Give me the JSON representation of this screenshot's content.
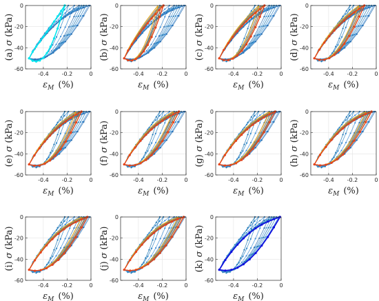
{
  "figure": {
    "xlabel": "εM (%)",
    "xlabel_symbol": "ε",
    "xlabel_sub": "M",
    "xlabel_unit": "(%)",
    "ylabel_symbol": "σ",
    "ylabel_unit": "(kPa)",
    "xticks": [
      "-0.4",
      "-0.2",
      "0"
    ],
    "yticks": [
      "0",
      "-20",
      "-40",
      "-60"
    ]
  },
  "chart_data": [
    {
      "type": "line",
      "panel": "(a)",
      "xlabel": "εM (%)",
      "ylabel": "σ (kPa)",
      "xlim": [
        -0.55,
        0
      ],
      "ylim": [
        -60,
        0
      ],
      "grid": true,
      "highlight_color": "#00e5ee",
      "highlight_loop": {
        "xmin": -0.52,
        "xmax": -0.22,
        "upper_mid": -28,
        "lower_mid": -46
      }
    },
    {
      "type": "line",
      "panel": "(b)",
      "xlabel": "εM (%)",
      "ylabel": "σ (kPa)",
      "xlim": [
        -0.55,
        0
      ],
      "ylim": [
        -60,
        0
      ],
      "grid": true,
      "highlight_color": "#e8441b",
      "highlight_loop": {
        "xmin": -0.52,
        "xmax": -0.19,
        "upper_mid": -24,
        "lower_mid": -43
      }
    },
    {
      "type": "line",
      "panel": "(c)",
      "xlabel": "εM (%)",
      "ylabel": "σ (kPa)",
      "xlim": [
        -0.55,
        0
      ],
      "ylim": [
        -60,
        0
      ],
      "grid": true,
      "highlight_color": "#e8441b",
      "highlight_loop": {
        "xmin": -0.52,
        "xmax": -0.14,
        "upper_mid": -22,
        "lower_mid": -42
      }
    },
    {
      "type": "line",
      "panel": "(d)",
      "xlabel": "εM (%)",
      "ylabel": "σ (kPa)",
      "xlim": [
        -0.55,
        0
      ],
      "ylim": [
        -60,
        0
      ],
      "grid": true,
      "highlight_color": "#e8441b",
      "highlight_loop": {
        "xmin": -0.52,
        "xmax": -0.1,
        "upper_mid": -21,
        "lower_mid": -41
      }
    },
    {
      "type": "line",
      "panel": "(e)",
      "xlabel": "εM (%)",
      "ylabel": "σ (kPa)",
      "xlim": [
        -0.55,
        0
      ],
      "ylim": [
        -60,
        0
      ],
      "grid": true,
      "highlight_color": "#e8441b",
      "highlight_loop": {
        "xmin": -0.52,
        "xmax": -0.08,
        "upper_mid": -20,
        "lower_mid": -40
      }
    },
    {
      "type": "line",
      "panel": "(f)",
      "xlabel": "εM (%)",
      "ylabel": "σ (kPa)",
      "xlim": [
        -0.55,
        0
      ],
      "ylim": [
        -60,
        0
      ],
      "grid": true,
      "highlight_color": "#e8441b",
      "highlight_loop": {
        "xmin": -0.52,
        "xmax": -0.06,
        "upper_mid": -19,
        "lower_mid": -39
      }
    },
    {
      "type": "line",
      "panel": "(g)",
      "xlabel": "εM (%)",
      "ylabel": "σ (kPa)",
      "xlim": [
        -0.55,
        0
      ],
      "ylim": [
        -60,
        0
      ],
      "grid": true,
      "highlight_color": "#e8441b",
      "highlight_loop": {
        "xmin": -0.52,
        "xmax": -0.05,
        "upper_mid": -19,
        "lower_mid": -39
      }
    },
    {
      "type": "line",
      "panel": "(h)",
      "xlabel": "εM (%)",
      "ylabel": "σ (kPa)",
      "xlim": [
        -0.55,
        0
      ],
      "ylim": [
        -60,
        0
      ],
      "grid": true,
      "highlight_color": "#e8441b",
      "highlight_loop": {
        "xmin": -0.52,
        "xmax": -0.04,
        "upper_mid": -18,
        "lower_mid": -38
      }
    },
    {
      "type": "line",
      "panel": "(i)",
      "xlabel": "εM (%)",
      "ylabel": "σ (kPa)",
      "xlim": [
        -0.55,
        0
      ],
      "ylim": [
        -60,
        0
      ],
      "grid": true,
      "highlight_color": "#e8441b",
      "highlight_loop": {
        "xmin": -0.52,
        "xmax": -0.03,
        "upper_mid": -18,
        "lower_mid": -38
      }
    },
    {
      "type": "line",
      "panel": "(j)",
      "xlabel": "εM (%)",
      "ylabel": "σ (kPa)",
      "xlim": [
        -0.55,
        0
      ],
      "ylim": [
        -60,
        0
      ],
      "grid": true,
      "highlight_color": "#e8441b",
      "highlight_loop": {
        "xmin": -0.52,
        "xmax": -0.02,
        "upper_mid": -17,
        "lower_mid": -37
      }
    },
    {
      "type": "line",
      "panel": "(k)",
      "xlabel": "εM (%)",
      "ylabel": "σ (kPa)",
      "xlim": [
        -0.55,
        0
      ],
      "ylim": [
        -60,
        0
      ],
      "grid": true,
      "highlight_color": "#1010dd",
      "highlight_loop": {
        "xmin": -0.52,
        "xmax": -0.01,
        "upper_mid": -17,
        "lower_mid": -37
      }
    }
  ],
  "background_loops": [
    {
      "xmin": -0.52,
      "xmax": -0.22,
      "upper_mid": -28,
      "lower_mid": -46
    },
    {
      "xmin": -0.52,
      "xmax": -0.19,
      "upper_mid": -24,
      "lower_mid": -43
    },
    {
      "xmin": -0.52,
      "xmax": -0.14,
      "upper_mid": -22,
      "lower_mid": -42
    },
    {
      "xmin": -0.52,
      "xmax": -0.1,
      "upper_mid": -21,
      "lower_mid": -41
    },
    {
      "xmin": -0.52,
      "xmax": -0.08,
      "upper_mid": -20,
      "lower_mid": -40
    },
    {
      "xmin": -0.52,
      "xmax": -0.06,
      "upper_mid": -19,
      "lower_mid": -39
    },
    {
      "xmin": -0.52,
      "xmax": -0.04,
      "upper_mid": -18,
      "lower_mid": -38
    },
    {
      "xmin": -0.52,
      "xmax": -0.02,
      "upper_mid": -17,
      "lower_mid": -37
    },
    {
      "xmin": -0.52,
      "xmax": -0.01,
      "upper_mid": -17,
      "lower_mid": -37
    }
  ],
  "colors": {
    "background_series": [
      "#1f77b4",
      "#2f86c8",
      "#3f8fd8",
      "#2a6fb0",
      "#4a9ad8"
    ],
    "inner_series": [
      "#2ca02c",
      "#8c6d31",
      "#7f7f7f",
      "#e6a817"
    ],
    "grid": "#dcdcdc",
    "axis": "#262626"
  }
}
